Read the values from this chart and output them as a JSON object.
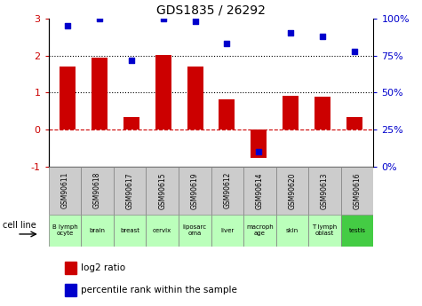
{
  "title": "GDS1835 / 26292",
  "gsm_labels": [
    "GSM90611",
    "GSM90618",
    "GSM90617",
    "GSM90615",
    "GSM90619",
    "GSM90612",
    "GSM90614",
    "GSM90620",
    "GSM90613",
    "GSM90616"
  ],
  "cell_labels": [
    "B lymph\nocyte",
    "brain",
    "breast",
    "cervix",
    "liposarc\noma",
    "liver",
    "macroph\nage",
    "skin",
    "T lymph\noblast",
    "testis"
  ],
  "log2_ratio": [
    1.7,
    1.95,
    0.35,
    2.02,
    1.7,
    0.82,
    -0.75,
    0.92,
    0.9,
    0.35
  ],
  "percentile": [
    95,
    100,
    72,
    100,
    98,
    83,
    10,
    90,
    88,
    78
  ],
  "bar_color": "#cc0000",
  "dot_color": "#0000cc",
  "ylim_left": [
    -1,
    3
  ],
  "ylim_right": [
    0,
    100
  ],
  "yticks_left": [
    -1,
    0,
    1,
    2,
    3
  ],
  "yticks_right": [
    0,
    25,
    50,
    75,
    100
  ],
  "yticklabels_right": [
    "0%",
    "25%",
    "50%",
    "75%",
    "100%"
  ],
  "hlines": [
    0,
    1,
    2
  ],
  "hline_styles": [
    "--",
    ":",
    ":"
  ],
  "hline_colors": [
    "#cc0000",
    "#000000",
    "#000000"
  ],
  "cell_bg_light": "#bbffbb",
  "cell_bg_dark": "#44cc44",
  "gsm_bg": "#cccccc",
  "cell_line_label": "cell line",
  "legend_red": "log2 ratio",
  "legend_blue": "percentile rank within the sample",
  "bar_width": 0.5
}
